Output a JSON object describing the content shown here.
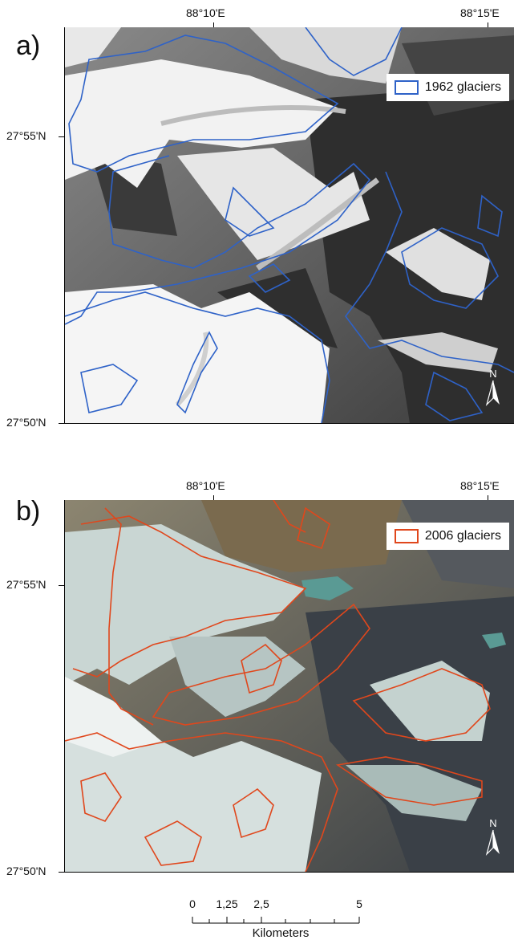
{
  "panels": [
    {
      "label": "a)",
      "legend_text": "1962 glaciers",
      "outline_color": "#2e62c8",
      "lon_labels": [
        "88°10'E",
        "88°15'E"
      ],
      "lat_labels": [
        "27°55'N",
        "27°50'N"
      ]
    },
    {
      "label": "b)",
      "legend_text": "2006 glaciers",
      "outline_color": "#e0471c",
      "lon_labels": [
        "88°10'E",
        "88°15'E"
      ],
      "lat_labels": [
        "27°55'N",
        "27°50'N"
      ]
    }
  ],
  "north_arrow": {
    "label": "N"
  },
  "scale_bar": {
    "ticks": [
      "0",
      "1,25",
      "2,5",
      "5"
    ],
    "unit": "Kilometers"
  }
}
